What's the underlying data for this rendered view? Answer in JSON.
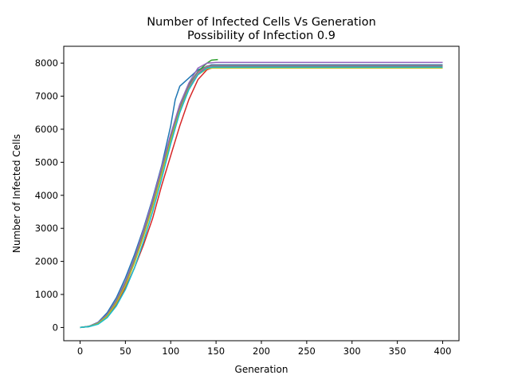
{
  "chart_data": {
    "type": "line",
    "title_line1": "Number of Infected Cells Vs Generation",
    "title_line2": "Possibility of Infection 0.9",
    "xlabel": "Generation",
    "ylabel": "Number of Infected Cells",
    "xlim": [
      -18,
      418
    ],
    "ylim": [
      -400,
      8510
    ],
    "xticks": [
      0,
      50,
      100,
      150,
      200,
      250,
      300,
      350,
      400
    ],
    "yticks": [
      0,
      1000,
      2000,
      3000,
      4000,
      5000,
      6000,
      7000,
      8000
    ],
    "grid": false,
    "legend": "none",
    "series": [
      {
        "color": "#1f77b4",
        "points": [
          [
            0,
            0
          ],
          [
            10,
            40
          ],
          [
            20,
            160
          ],
          [
            30,
            450
          ],
          [
            40,
            900
          ],
          [
            50,
            1500
          ],
          [
            60,
            2200
          ],
          [
            70,
            3000
          ],
          [
            80,
            3900
          ],
          [
            90,
            4900
          ],
          [
            100,
            6100
          ],
          [
            105,
            6900
          ],
          [
            110,
            7300
          ],
          [
            120,
            7550
          ],
          [
            130,
            7800
          ],
          [
            140,
            7900
          ],
          [
            145,
            7950
          ],
          [
            400,
            7950
          ]
        ]
      },
      {
        "color": "#ff7f0e",
        "points": [
          [
            0,
            0
          ],
          [
            10,
            30
          ],
          [
            20,
            120
          ],
          [
            30,
            350
          ],
          [
            40,
            750
          ],
          [
            50,
            1300
          ],
          [
            60,
            2000
          ],
          [
            70,
            2800
          ],
          [
            80,
            3700
          ],
          [
            90,
            4700
          ],
          [
            100,
            5700
          ],
          [
            110,
            6600
          ],
          [
            120,
            7300
          ],
          [
            130,
            7650
          ],
          [
            140,
            7830
          ],
          [
            145,
            7860
          ],
          [
            400,
            7860
          ]
        ]
      },
      {
        "color": "#2ca02c",
        "points": [
          [
            0,
            0
          ],
          [
            10,
            35
          ],
          [
            20,
            140
          ],
          [
            30,
            380
          ],
          [
            40,
            800
          ],
          [
            50,
            1350
          ],
          [
            60,
            2050
          ],
          [
            70,
            2850
          ],
          [
            80,
            3750
          ],
          [
            90,
            4750
          ],
          [
            100,
            5750
          ],
          [
            110,
            6650
          ],
          [
            120,
            7350
          ],
          [
            130,
            7750
          ],
          [
            140,
            8000
          ],
          [
            145,
            8090
          ],
          [
            152,
            8110
          ]
        ]
      },
      {
        "color": "#d62728",
        "points": [
          [
            0,
            0
          ],
          [
            10,
            30
          ],
          [
            20,
            110
          ],
          [
            30,
            320
          ],
          [
            40,
            680
          ],
          [
            50,
            1200
          ],
          [
            60,
            1800
          ],
          [
            70,
            2500
          ],
          [
            80,
            3300
          ],
          [
            90,
            4300
          ],
          [
            100,
            5200
          ],
          [
            110,
            6100
          ],
          [
            120,
            6900
          ],
          [
            130,
            7500
          ],
          [
            140,
            7800
          ],
          [
            148,
            7880
          ],
          [
            400,
            7880
          ]
        ]
      },
      {
        "color": "#9467bd",
        "points": [
          [
            0,
            0
          ],
          [
            10,
            35
          ],
          [
            20,
            150
          ],
          [
            30,
            400
          ],
          [
            40,
            830
          ],
          [
            50,
            1400
          ],
          [
            60,
            2100
          ],
          [
            70,
            2950
          ],
          [
            80,
            3850
          ],
          [
            90,
            4850
          ],
          [
            100,
            5850
          ],
          [
            110,
            6750
          ],
          [
            120,
            7400
          ],
          [
            130,
            7850
          ],
          [
            140,
            8000
          ],
          [
            150,
            8020
          ],
          [
            400,
            8020
          ]
        ]
      },
      {
        "color": "#8c564b",
        "points": [
          [
            0,
            0
          ],
          [
            10,
            30
          ],
          [
            20,
            125
          ],
          [
            30,
            360
          ],
          [
            40,
            760
          ],
          [
            50,
            1300
          ],
          [
            60,
            1980
          ],
          [
            70,
            2780
          ],
          [
            80,
            3680
          ],
          [
            90,
            4680
          ],
          [
            100,
            5680
          ],
          [
            110,
            6580
          ],
          [
            120,
            7250
          ],
          [
            130,
            7700
          ],
          [
            140,
            7880
          ],
          [
            146,
            7900
          ],
          [
            400,
            7900
          ]
        ]
      },
      {
        "color": "#e377c2",
        "points": [
          [
            0,
            0
          ],
          [
            10,
            32
          ],
          [
            20,
            130
          ],
          [
            30,
            370
          ],
          [
            40,
            790
          ],
          [
            50,
            1330
          ],
          [
            60,
            2030
          ],
          [
            70,
            2830
          ],
          [
            80,
            3730
          ],
          [
            90,
            4730
          ],
          [
            100,
            5730
          ],
          [
            110,
            6630
          ],
          [
            120,
            7300
          ],
          [
            130,
            7720
          ],
          [
            140,
            7900
          ],
          [
            146,
            7920
          ],
          [
            400,
            7920
          ]
        ]
      },
      {
        "color": "#7f7f7f",
        "points": [
          [
            0,
            0
          ],
          [
            10,
            33
          ],
          [
            20,
            135
          ],
          [
            30,
            375
          ],
          [
            40,
            795
          ],
          [
            50,
            1340
          ],
          [
            60,
            2040
          ],
          [
            70,
            2840
          ],
          [
            80,
            3740
          ],
          [
            90,
            4740
          ],
          [
            100,
            5740
          ],
          [
            110,
            6640
          ],
          [
            120,
            7320
          ],
          [
            130,
            7740
          ],
          [
            140,
            7910
          ],
          [
            146,
            7930
          ],
          [
            400,
            7930
          ]
        ]
      },
      {
        "color": "#bcbd22",
        "points": [
          [
            0,
            0
          ],
          [
            10,
            30
          ],
          [
            20,
            118
          ],
          [
            30,
            345
          ],
          [
            40,
            740
          ],
          [
            50,
            1270
          ],
          [
            60,
            1950
          ],
          [
            70,
            2750
          ],
          [
            80,
            3650
          ],
          [
            90,
            4650
          ],
          [
            100,
            5650
          ],
          [
            110,
            6550
          ],
          [
            120,
            7220
          ],
          [
            130,
            7650
          ],
          [
            140,
            7830
          ],
          [
            146,
            7850
          ],
          [
            400,
            7850
          ]
        ]
      },
      {
        "color": "#17becf",
        "points": [
          [
            0,
            0
          ],
          [
            10,
            25
          ],
          [
            20,
            100
          ],
          [
            30,
            300
          ],
          [
            40,
            650
          ],
          [
            50,
            1150
          ],
          [
            60,
            1800
          ],
          [
            70,
            2600
          ],
          [
            80,
            3500
          ],
          [
            90,
            4500
          ],
          [
            100,
            5550
          ],
          [
            110,
            6500
          ],
          [
            120,
            7200
          ],
          [
            130,
            7650
          ],
          [
            140,
            7850
          ],
          [
            146,
            7880
          ],
          [
            400,
            7880
          ]
        ]
      }
    ]
  }
}
